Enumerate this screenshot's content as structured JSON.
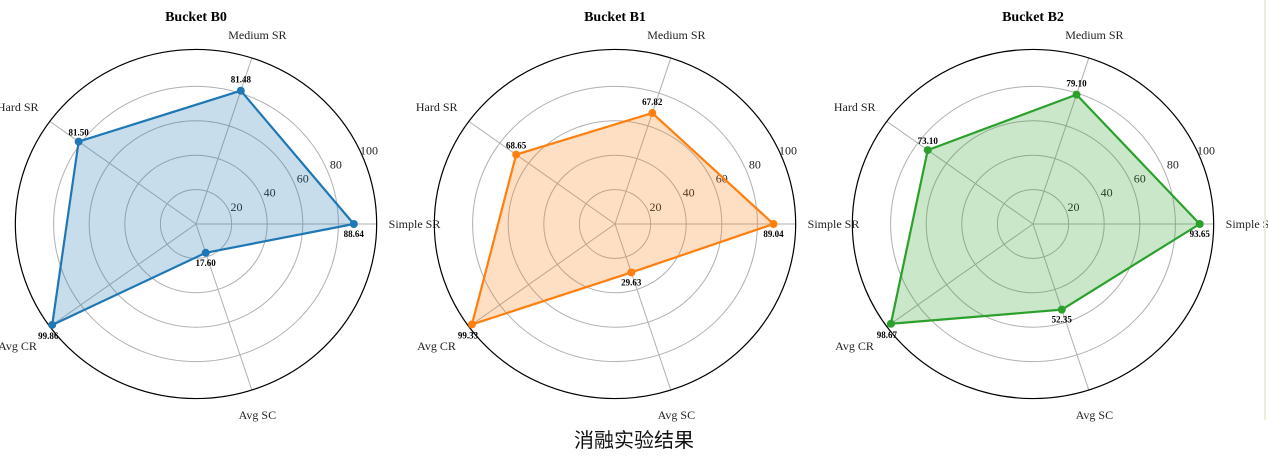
{
  "caption": "消融实验结果",
  "chart_data": [
    {
      "type": "radar",
      "title": "Bucket B0",
      "axes": [
        "Simple SR",
        "Medium SR",
        "Hard SR",
        "Avg CR",
        "Avg SC"
      ],
      "values": [
        88.64,
        81.48,
        81.5,
        99.86,
        17.6
      ],
      "value_labels": [
        "88.64",
        "81.48",
        "81.50",
        "99.86",
        "17.60"
      ],
      "rlim": [
        0,
        100
      ],
      "rticks": [
        "20",
        "40",
        "60",
        "80",
        "100"
      ],
      "grid": true,
      "color": "#1f77b4"
    },
    {
      "type": "radar",
      "title": "Bucket B1",
      "axes": [
        "Simple SR",
        "Medium SR",
        "Hard SR",
        "Avg CR",
        "Avg SC"
      ],
      "values": [
        89.04,
        67.82,
        68.65,
        99.33,
        29.63
      ],
      "value_labels": [
        "89.04",
        "67.82",
        "68.65",
        "99.33",
        "29.63"
      ],
      "rlim": [
        0,
        100
      ],
      "rticks": [
        "20",
        "40",
        "60",
        "80",
        "100"
      ],
      "grid": true,
      "color": "#ff7f0e"
    },
    {
      "type": "radar",
      "title": "Bucket B2",
      "axes": [
        "Simple SR",
        "Medium SR",
        "Hard SR",
        "Avg CR",
        "Avg SC"
      ],
      "values": [
        93.65,
        79.1,
        73.1,
        98.67,
        52.35
      ],
      "value_labels": [
        "93.65",
        "79.10",
        "73.10",
        "98.67",
        "52.35"
      ],
      "rlim": [
        0,
        100
      ],
      "rticks": [
        "20",
        "40",
        "60",
        "80",
        "100"
      ],
      "grid": true,
      "color": "#2ca02c"
    }
  ]
}
